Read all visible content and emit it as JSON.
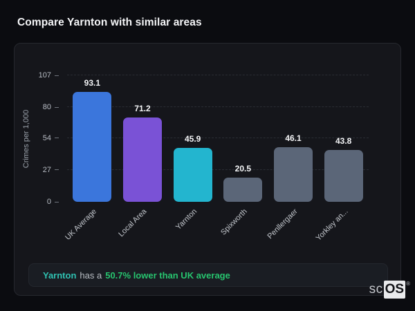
{
  "page": {
    "title": "Compare Yarnton with similar areas"
  },
  "chart_data": {
    "type": "bar",
    "title": "",
    "xlabel": "",
    "ylabel": "Crimes per 1,000",
    "ylim": [
      0,
      107
    ],
    "yticks": [
      0,
      27,
      54,
      80,
      107
    ],
    "grid": "horizontal-dashed",
    "legend": "none",
    "categories": [
      "UK Average",
      "Local Area",
      "Yarnton",
      "Spixworth",
      "Penllergaer",
      "Yorkley an..."
    ],
    "values": [
      93.1,
      71.2,
      45.9,
      20.5,
      46.1,
      43.8
    ],
    "bar_colors": [
      "#3b76dc",
      "#7a52d6",
      "#23b5cf",
      "#5b6678",
      "#5b6678",
      "#5b6678"
    ]
  },
  "note": {
    "subject": "Yarnton",
    "middle": "has a",
    "highlight": "50.7% lower than UK average"
  },
  "logo": {
    "prefix": "sc",
    "suffix": "OS",
    "registered": "®"
  },
  "colors": {
    "background": "#0b0c10",
    "card_background": "#15161b",
    "card_border": "#26282e",
    "gridline": "#2a2d34",
    "tick_text": "#b9bec6",
    "value_text": "#f4f5f7",
    "note_subject": "#2fc2b2",
    "note_highlight": "#27c56f"
  }
}
